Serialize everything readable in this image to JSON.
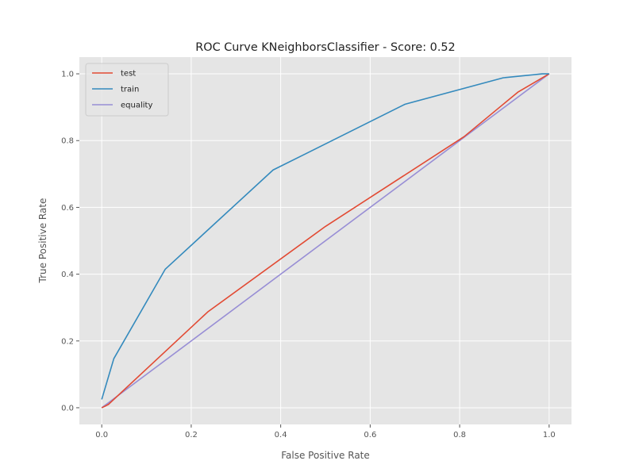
{
  "chart_data": {
    "type": "line",
    "title": "ROC Curve KNeighborsClassifier - Score: 0.52",
    "xlabel": "False Positive Rate",
    "ylabel": "True Positive Rate",
    "xlim": [
      -0.05,
      1.05
    ],
    "ylim": [
      -0.05,
      1.05
    ],
    "xticks": [
      0.0,
      0.2,
      0.4,
      0.6,
      0.8,
      1.0
    ],
    "yticks": [
      0.0,
      0.2,
      0.4,
      0.6,
      0.8,
      1.0
    ],
    "xtick_labels": [
      "0.0",
      "0.2",
      "0.4",
      "0.6",
      "0.8",
      "1.0"
    ],
    "ytick_labels": [
      "0.0",
      "0.2",
      "0.4",
      "0.6",
      "0.8",
      "1.0"
    ],
    "grid": true,
    "legend_position": "upper-left",
    "series": [
      {
        "name": "test",
        "color": "#E24A33",
        "x": [
          0.0,
          0.005,
          0.015,
          0.237,
          0.5,
          0.81,
          0.93,
          1.0
        ],
        "y": [
          0.0,
          0.003,
          0.01,
          0.287,
          0.543,
          0.812,
          0.945,
          1.0
        ]
      },
      {
        "name": "train",
        "color": "#348ABD",
        "x": [
          0.0,
          0.027,
          0.142,
          0.383,
          0.678,
          0.897,
          0.985,
          1.0
        ],
        "y": [
          0.025,
          0.147,
          0.415,
          0.712,
          0.909,
          0.988,
          1.0,
          1.0
        ]
      },
      {
        "name": "equality",
        "color": "#988ED5",
        "x": [
          0.0,
          1.0
        ],
        "y": [
          0.0,
          1.0
        ]
      }
    ]
  }
}
